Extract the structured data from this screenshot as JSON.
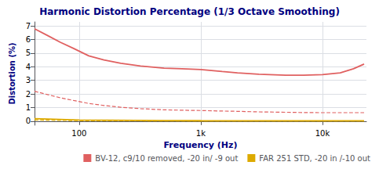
{
  "chart_data": {
    "type": "line",
    "title": "Harmonic Distortion Percentage (1/3 Octave Smoothing)",
    "xlabel": "Frequency (Hz)",
    "ylabel": "Distortion (%)",
    "log": "x",
    "xlim": [
      43,
      23000
    ],
    "xticks": [
      100,
      {
        "value": 1000,
        "label": "1k"
      },
      {
        "value": 10000,
        "label": "10k"
      }
    ],
    "ylim": [
      -0.3,
      7.3
    ],
    "yticks": [
      0,
      1,
      2,
      3,
      4,
      5,
      6,
      7
    ],
    "grid": true,
    "legend": "lower right",
    "series": [
      {
        "name": "BV-12, c9/10 removed, -20 in/ -9 out",
        "color": "#e06060",
        "line_style": "solid",
        "x": [
          43,
          55,
          70,
          90,
          120,
          160,
          220,
          320,
          500,
          700,
          1000,
          1500,
          2000,
          3000,
          5000,
          7000,
          10000,
          14000,
          18000,
          22000
        ],
        "values": [
          6.8,
          6.3,
          5.8,
          5.35,
          4.8,
          4.5,
          4.25,
          4.05,
          3.9,
          3.85,
          3.8,
          3.65,
          3.55,
          3.45,
          3.38,
          3.38,
          3.42,
          3.55,
          3.85,
          4.2
        ]
      },
      {
        "name": "BV-12, c9/10 removed, -20 in/ -9 out",
        "color": "#e06060",
        "line_style": "dashed",
        "x": [
          43,
          55,
          70,
          90,
          120,
          160,
          220,
          320,
          500,
          700,
          1000,
          1500,
          2000,
          3000,
          5000,
          7000,
          10000,
          14000,
          18000,
          22000
        ],
        "values": [
          2.2,
          1.95,
          1.72,
          1.52,
          1.3,
          1.15,
          1.02,
          0.92,
          0.83,
          0.8,
          0.78,
          0.74,
          0.72,
          0.68,
          0.65,
          0.63,
          0.62,
          0.62,
          0.62,
          0.62
        ]
      },
      {
        "name": "FAR 251 STD, -20 in /-10 out",
        "color": "#ddaa00",
        "line_style": "solid",
        "x": [
          43,
          100,
          500,
          1000,
          5000,
          10000,
          22000
        ],
        "values": [
          0.18,
          0.08,
          0.04,
          0.03,
          0.02,
          0.02,
          0.02
        ]
      },
      {
        "name": "FAR 251 STD, -20 in /-10 out",
        "color": "#ddaa00",
        "line_style": "dashed",
        "x": [
          43,
          100,
          500,
          1000,
          5000,
          10000,
          22000
        ],
        "values": [
          0.08,
          0.03,
          0.01,
          0.01,
          0.01,
          0.01,
          0.01
        ]
      }
    ]
  }
}
